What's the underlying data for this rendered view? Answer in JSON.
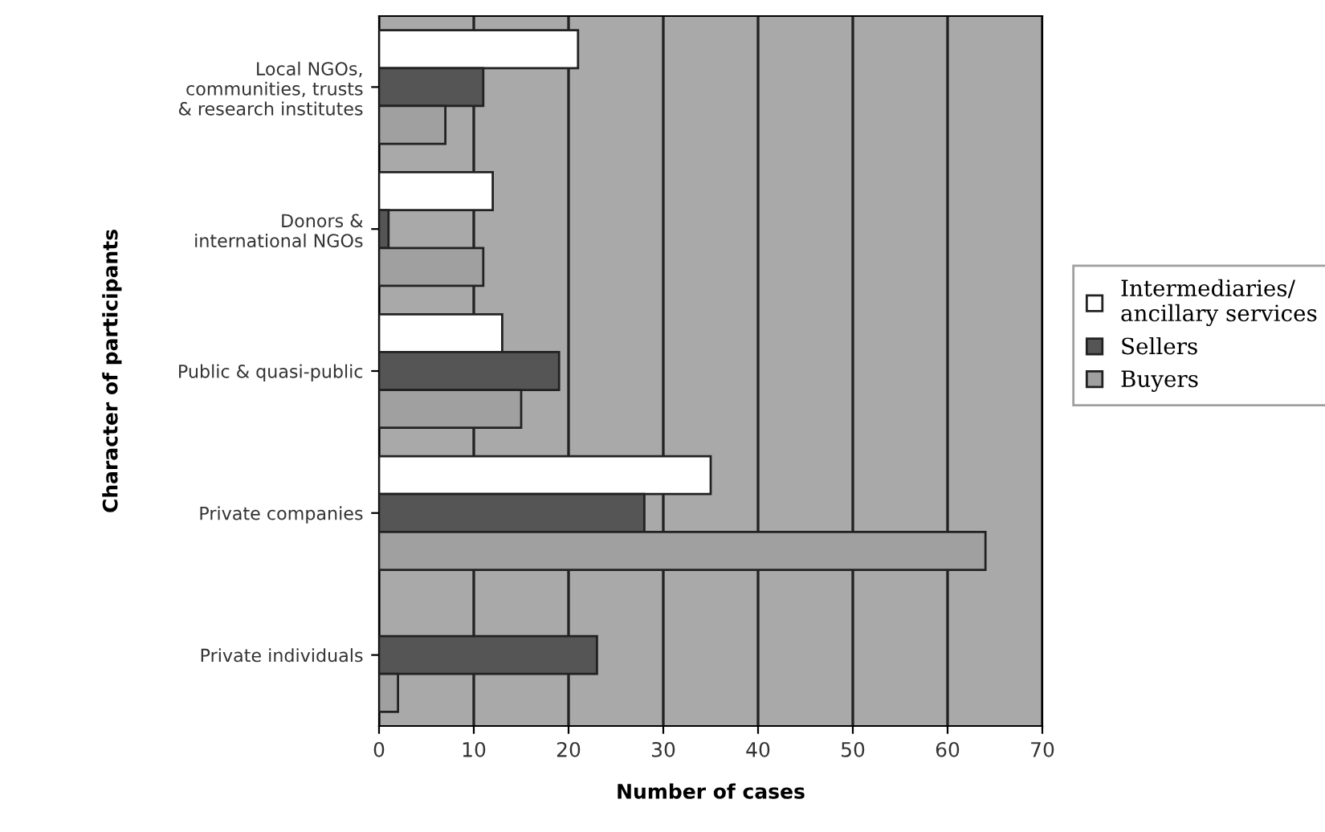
{
  "chart_data": {
    "type": "bar",
    "orientation": "horizontal",
    "xlabel": "Number of cases",
    "ylabel": "Character of participants",
    "categories": [
      "Local NGOs,\ncommunities, trusts\n& research institutes",
      "Donors &\ninternational NGOs",
      "Public & quasi-public",
      "Private companies",
      "Private individuals"
    ],
    "series": [
      {
        "name": "Intermediaries/\nancillary services",
        "color": "#ffffff",
        "values": [
          21,
          12,
          13,
          35,
          null
        ]
      },
      {
        "name": "Sellers",
        "color": "#555555",
        "values": [
          11,
          1,
          19,
          28,
          23
        ]
      },
      {
        "name": "Buyers",
        "color": "#a0a0a0",
        "values": [
          7,
          11,
          15,
          64,
          2
        ]
      }
    ],
    "xlim": [
      0,
      70
    ],
    "xticks": [
      0,
      10,
      20,
      30,
      40,
      50,
      60,
      70
    ],
    "grid": "x",
    "legend": "right"
  }
}
